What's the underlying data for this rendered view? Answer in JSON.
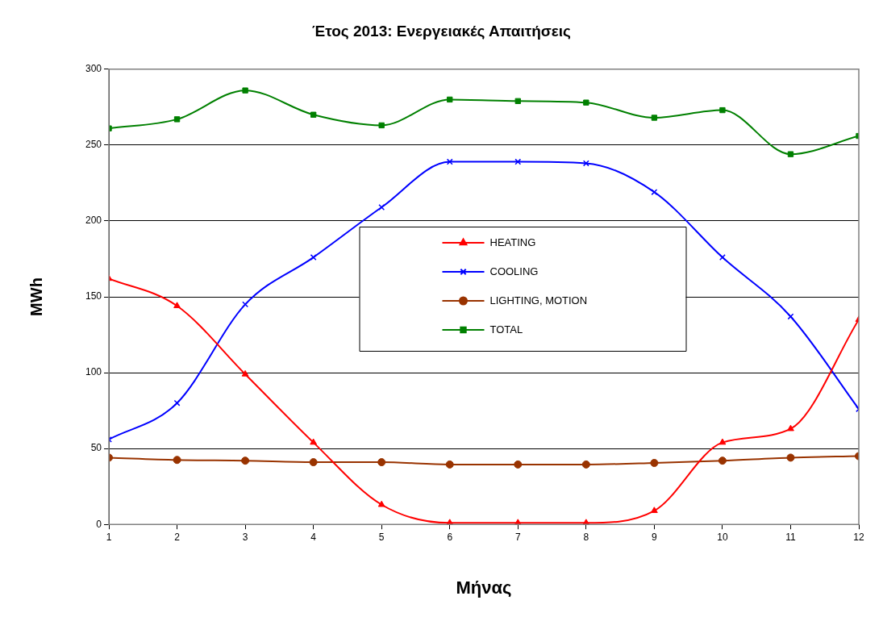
{
  "chart_data": {
    "type": "line",
    "title": "Έτος 2013: Ενεργειακές Απαιτήσεις",
    "xlabel": "Μήνας",
    "ylabel": "MWh",
    "x": [
      1,
      2,
      3,
      4,
      5,
      6,
      7,
      8,
      9,
      10,
      11,
      12
    ],
    "xlim": [
      1,
      12
    ],
    "xticks": [
      1,
      2,
      3,
      4,
      5,
      6,
      7,
      8,
      9,
      10,
      11,
      12
    ],
    "ylim": [
      0,
      300
    ],
    "yticks": [
      0,
      50,
      100,
      150,
      200,
      250,
      300
    ],
    "grid": "y",
    "legend": "center",
    "series": [
      {
        "name": "HEATING",
        "color": "#ff0000",
        "marker": "triangle",
        "values": [
          162,
          144,
          99,
          54,
          13,
          1,
          1,
          1,
          9,
          54,
          63,
          135
        ]
      },
      {
        "name": "COOLING",
        "color": "#0000ff",
        "marker": "cross",
        "values": [
          56,
          80,
          145,
          176,
          209,
          239,
          239,
          238,
          219,
          176,
          137,
          76
        ]
      },
      {
        "name": "LIGHTING, MOTION",
        "color": "#993300",
        "marker": "circle",
        "values": [
          44,
          42.5,
          42,
          41,
          41,
          39.5,
          39.5,
          39.5,
          40.5,
          42,
          44,
          45
        ]
      },
      {
        "name": "TOTAL",
        "color": "#008000",
        "marker": "square",
        "values": [
          261,
          267,
          286,
          270,
          263,
          280,
          279,
          278,
          268,
          273,
          244,
          256
        ]
      }
    ]
  }
}
